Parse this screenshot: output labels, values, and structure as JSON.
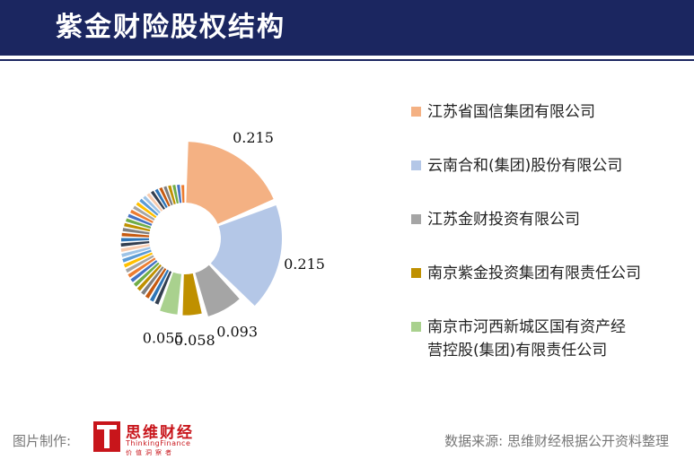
{
  "title": "紫金财险股权结构",
  "chart_data": {
    "type": "pie",
    "labeled_slices": [
      {
        "name": "江苏省国信集团有限公司",
        "value": 0.215,
        "label": "0.215",
        "color": "#f4b183"
      },
      {
        "name": "云南合和(集团)股份有限公司",
        "value": 0.215,
        "label": "0.215",
        "color": "#b4c7e7"
      },
      {
        "name": "江苏金财投资有限公司",
        "value": 0.093,
        "label": "0.093",
        "color": "#a5a5a5"
      },
      {
        "name": "南京紫金投资集团有限责任公司",
        "value": 0.058,
        "label": "0.058",
        "color": "#bf9000"
      },
      {
        "name": "南京市河西新城区国有资产经营控股(集团)有限责任公司",
        "value": 0.055,
        "label": "0.055",
        "color": "#a9d18e"
      }
    ],
    "other_slice_colors": [
      "#333f50",
      "#2e75b6",
      "#c55a11",
      "#7f7f7f",
      "#bf9000",
      "#70ad47",
      "#4472c4",
      "#ed7d31",
      "#a5a5a5",
      "#ffc000",
      "#5b9bd5",
      "#9dc3e6",
      "#f8cbad"
    ],
    "legend": {
      "position": "right",
      "entries": [
        {
          "lines": [
            "江苏省国信集团有限公司"
          ],
          "color": "#f4b183"
        },
        {
          "lines": [
            "云南合和(集团)股份有限公司"
          ],
          "color": "#b4c7e7"
        },
        {
          "lines": [
            "江苏金财投资有限公司"
          ],
          "color": "#a5a5a5"
        },
        {
          "lines": [
            "南京紫金投资集团有限责任公司"
          ],
          "color": "#bf9000"
        },
        {
          "lines": [
            "南京市河西新城区国有资产经",
            "营控股(集团)有限责任公司"
          ],
          "color": "#a9d18e"
        }
      ]
    }
  },
  "footer": {
    "left_label": "图片制作:",
    "logo_cn": "思维财经",
    "logo_en": "ThinkingFinance",
    "logo_sub": "价值洞察者",
    "source": "数据来源: 思维财经根据公开资料整理"
  }
}
